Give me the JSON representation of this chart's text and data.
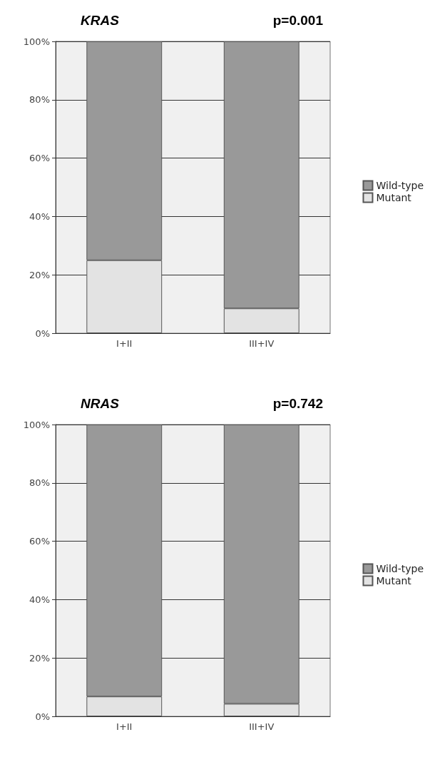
{
  "chart_data": [
    {
      "type": "bar",
      "title": "KRAS",
      "annotations": [
        "p=0.001"
      ],
      "categories": [
        "I+II",
        "III+IV"
      ],
      "stacked": true,
      "legend": "right",
      "grid": "y",
      "ylim": [
        0,
        100
      ],
      "yticks": [
        {
          "value": 0,
          "label": "0%"
        },
        {
          "value": 20,
          "label": "20%"
        },
        {
          "value": 40,
          "label": "40%"
        },
        {
          "value": 60,
          "label": "60%"
        },
        {
          "value": 80,
          "label": "80%"
        },
        {
          "value": 100,
          "label": "100%"
        }
      ],
      "series": [
        {
          "name": "Mutant",
          "color": "#e3e3e3",
          "values": [
            25,
            8.5
          ]
        },
        {
          "name": "Wild-type",
          "color": "#999999",
          "values": [
            75,
            91.5
          ]
        }
      ]
    },
    {
      "type": "bar",
      "title": "NRAS",
      "annotations": [
        "p=0.742"
      ],
      "categories": [
        "I+II",
        "III+IV"
      ],
      "stacked": true,
      "legend": "right",
      "grid": "y",
      "ylim": [
        0,
        100
      ],
      "yticks": [
        {
          "value": 0,
          "label": "0%"
        },
        {
          "value": 20,
          "label": "20%"
        },
        {
          "value": 40,
          "label": "40%"
        },
        {
          "value": 60,
          "label": "60%"
        },
        {
          "value": 80,
          "label": "80%"
        },
        {
          "value": 100,
          "label": "100%"
        }
      ],
      "series": [
        {
          "name": "Mutant",
          "color": "#e3e3e3",
          "values": [
            6.8,
            4.3
          ]
        },
        {
          "name": "Wild-type",
          "color": "#999999",
          "values": [
            93.2,
            95.7
          ]
        }
      ]
    }
  ]
}
